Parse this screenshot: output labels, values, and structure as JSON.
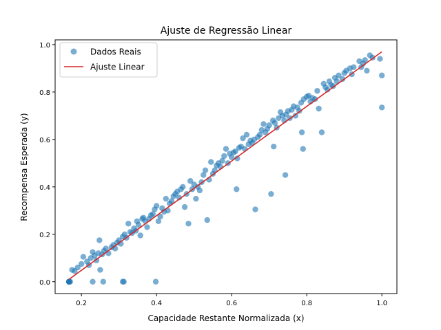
{
  "chart_data": {
    "type": "scatter",
    "title": "Ajuste de Regressão Linear",
    "xlabel": "Capacidade Restante Normalizada (x)",
    "ylabel": "Recompensa Esperada (y)",
    "xlim": [
      0.13,
      1.04
    ],
    "ylim": [
      -0.05,
      1.02
    ],
    "xticks": [
      0.2,
      0.4,
      0.6,
      0.8,
      1.0
    ],
    "xtick_labels": [
      "0.2",
      "0.4",
      "0.6",
      "0.8",
      "1.0"
    ],
    "yticks": [
      0.0,
      0.2,
      0.4,
      0.6,
      0.8,
      1.0
    ],
    "ytick_labels": [
      "0.0",
      "0.2",
      "0.4",
      "0.6",
      "0.8",
      "1.0"
    ],
    "grid": false,
    "legend": {
      "position": "top-left",
      "entries": [
        "Dados Reais",
        "Ajuste Linear"
      ]
    },
    "series": [
      {
        "name": "Dados Reais",
        "kind": "scatter",
        "color": "#1f77b4",
        "alpha": 0.6,
        "points": [
          [
            0.167,
            0.0
          ],
          [
            0.167,
            0.0
          ],
          [
            0.167,
            0.0
          ],
          [
            0.167,
            0.0
          ],
          [
            0.167,
            0.0
          ],
          [
            0.17,
            0.0
          ],
          [
            0.23,
            0.0
          ],
          [
            0.258,
            0.0
          ],
          [
            0.31,
            0.0
          ],
          [
            0.313,
            0.0
          ],
          [
            0.398,
            0.0
          ],
          [
            0.25,
            0.05
          ],
          [
            0.175,
            0.05
          ],
          [
            0.182,
            0.045
          ],
          [
            0.19,
            0.06
          ],
          [
            0.2,
            0.075
          ],
          [
            0.205,
            0.105
          ],
          [
            0.215,
            0.085
          ],
          [
            0.22,
            0.07
          ],
          [
            0.225,
            0.1
          ],
          [
            0.23,
            0.125
          ],
          [
            0.235,
            0.11
          ],
          [
            0.24,
            0.09
          ],
          [
            0.245,
            0.12
          ],
          [
            0.248,
            0.175
          ],
          [
            0.255,
            0.115
          ],
          [
            0.26,
            0.13
          ],
          [
            0.265,
            0.14
          ],
          [
            0.272,
            0.12
          ],
          [
            0.28,
            0.145
          ],
          [
            0.285,
            0.155
          ],
          [
            0.29,
            0.14
          ],
          [
            0.295,
            0.165
          ],
          [
            0.3,
            0.175
          ],
          [
            0.305,
            0.16
          ],
          [
            0.31,
            0.19
          ],
          [
            0.315,
            0.2
          ],
          [
            0.32,
            0.185
          ],
          [
            0.325,
            0.245
          ],
          [
            0.33,
            0.21
          ],
          [
            0.335,
            0.205
          ],
          [
            0.34,
            0.225
          ],
          [
            0.345,
            0.215
          ],
          [
            0.348,
            0.255
          ],
          [
            0.352,
            0.24
          ],
          [
            0.357,
            0.195
          ],
          [
            0.362,
            0.265
          ],
          [
            0.365,
            0.27
          ],
          [
            0.37,
            0.255
          ],
          [
            0.375,
            0.23
          ],
          [
            0.38,
            0.265
          ],
          [
            0.385,
            0.28
          ],
          [
            0.39,
            0.285
          ],
          [
            0.395,
            0.305
          ],
          [
            0.4,
            0.32
          ],
          [
            0.405,
            0.255
          ],
          [
            0.41,
            0.275
          ],
          [
            0.415,
            0.31
          ],
          [
            0.42,
            0.295
          ],
          [
            0.425,
            0.35
          ],
          [
            0.43,
            0.3
          ],
          [
            0.435,
            0.33
          ],
          [
            0.44,
            0.34
          ],
          [
            0.445,
            0.36
          ],
          [
            0.45,
            0.37
          ],
          [
            0.455,
            0.38
          ],
          [
            0.46,
            0.355
          ],
          [
            0.465,
            0.39
          ],
          [
            0.47,
            0.4
          ],
          [
            0.475,
            0.315
          ],
          [
            0.48,
            0.37
          ],
          [
            0.485,
            0.245
          ],
          [
            0.49,
            0.425
          ],
          [
            0.495,
            0.39
          ],
          [
            0.5,
            0.41
          ],
          [
            0.505,
            0.35
          ],
          [
            0.51,
            0.4
          ],
          [
            0.515,
            0.385
          ],
          [
            0.52,
            0.42
          ],
          [
            0.525,
            0.45
          ],
          [
            0.53,
            0.47
          ],
          [
            0.535,
            0.26
          ],
          [
            0.54,
            0.43
          ],
          [
            0.545,
            0.505
          ],
          [
            0.55,
            0.455
          ],
          [
            0.555,
            0.47
          ],
          [
            0.56,
            0.49
          ],
          [
            0.565,
            0.5
          ],
          [
            0.57,
            0.485
          ],
          [
            0.575,
            0.51
          ],
          [
            0.58,
            0.53
          ],
          [
            0.585,
            0.56
          ],
          [
            0.59,
            0.5
          ],
          [
            0.595,
            0.54
          ],
          [
            0.6,
            0.525
          ],
          [
            0.605,
            0.545
          ],
          [
            0.61,
            0.55
          ],
          [
            0.613,
            0.39
          ],
          [
            0.615,
            0.52
          ],
          [
            0.62,
            0.565
          ],
          [
            0.625,
            0.57
          ],
          [
            0.63,
            0.605
          ],
          [
            0.635,
            0.56
          ],
          [
            0.64,
            0.62
          ],
          [
            0.645,
            0.58
          ],
          [
            0.65,
            0.595
          ],
          [
            0.655,
            0.585
          ],
          [
            0.66,
            0.6
          ],
          [
            0.663,
            0.305
          ],
          [
            0.67,
            0.61
          ],
          [
            0.675,
            0.62
          ],
          [
            0.68,
            0.64
          ],
          [
            0.685,
            0.665
          ],
          [
            0.69,
            0.63
          ],
          [
            0.695,
            0.645
          ],
          [
            0.7,
            0.66
          ],
          [
            0.705,
            0.37
          ],
          [
            0.71,
            0.68
          ],
          [
            0.712,
            0.57
          ],
          [
            0.715,
            0.67
          ],
          [
            0.72,
            0.65
          ],
          [
            0.725,
            0.69
          ],
          [
            0.73,
            0.715
          ],
          [
            0.735,
            0.7
          ],
          [
            0.74,
            0.68
          ],
          [
            0.743,
            0.45
          ],
          [
            0.745,
            0.705
          ],
          [
            0.75,
            0.72
          ],
          [
            0.755,
            0.69
          ],
          [
            0.76,
            0.725
          ],
          [
            0.765,
            0.74
          ],
          [
            0.77,
            0.7
          ],
          [
            0.775,
            0.735
          ],
          [
            0.78,
            0.72
          ],
          [
            0.785,
            0.755
          ],
          [
            0.787,
            0.63
          ],
          [
            0.79,
            0.56
          ],
          [
            0.792,
            0.77
          ],
          [
            0.8,
            0.78
          ],
          [
            0.805,
            0.785
          ],
          [
            0.81,
            0.76
          ],
          [
            0.815,
            0.775
          ],
          [
            0.822,
            0.77
          ],
          [
            0.828,
            0.805
          ],
          [
            0.832,
            0.73
          ],
          [
            0.84,
            0.63
          ],
          [
            0.845,
            0.835
          ],
          [
            0.85,
            0.82
          ],
          [
            0.855,
            0.81
          ],
          [
            0.86,
            0.845
          ],
          [
            0.865,
            0.83
          ],
          [
            0.87,
            0.825
          ],
          [
            0.875,
            0.86
          ],
          [
            0.88,
            0.845
          ],
          [
            0.885,
            0.87
          ],
          [
            0.895,
            0.855
          ],
          [
            0.9,
            0.88
          ],
          [
            0.905,
            0.89
          ],
          [
            0.915,
            0.9
          ],
          [
            0.92,
            0.875
          ],
          [
            0.925,
            0.905
          ],
          [
            0.94,
            0.93
          ],
          [
            0.945,
            0.905
          ],
          [
            0.95,
            0.92
          ],
          [
            0.955,
            0.935
          ],
          [
            0.96,
            0.89
          ],
          [
            0.968,
            0.955
          ],
          [
            0.975,
            0.945
          ],
          [
            0.995,
            0.94
          ],
          [
            1.0,
            0.735
          ],
          [
            1.0,
            0.87
          ]
        ]
      },
      {
        "name": "Ajuste Linear",
        "kind": "line",
        "color": "#d62728",
        "points": [
          [
            0.167,
            0.01
          ],
          [
            1.0,
            0.97
          ]
        ]
      }
    ]
  }
}
